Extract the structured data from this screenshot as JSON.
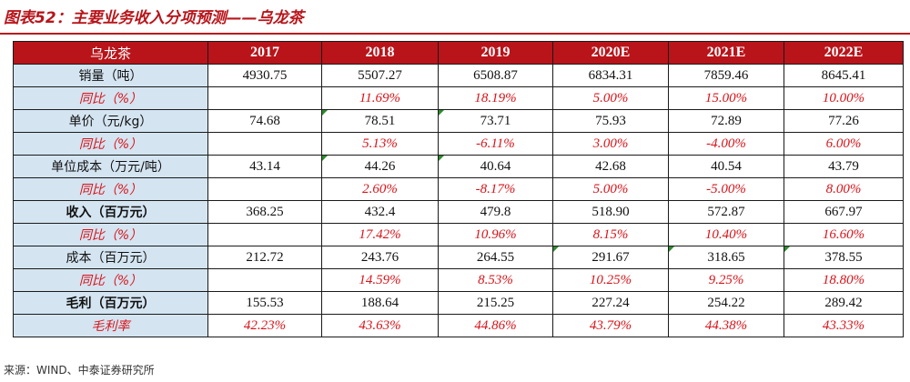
{
  "title": "图表52：主要业务收入分项预测——乌龙茶",
  "table": {
    "header": [
      "乌龙茶",
      "2017",
      "2018",
      "2019",
      "2020E",
      "2021E",
      "2022E"
    ],
    "rows": [
      {
        "label": "销量（吨）",
        "style": "normal",
        "values": [
          "4930.75",
          "5507.27",
          "6508.87",
          "6834.31",
          "7859.46",
          "8645.41"
        ]
      },
      {
        "label": "同比（%）",
        "style": "pct",
        "values": [
          "",
          "11.69%",
          "18.19%",
          "5.00%",
          "15.00%",
          "10.00%"
        ]
      },
      {
        "label": "单价（元/kg）",
        "style": "normal",
        "values": [
          "74.68",
          "78.51",
          "73.71",
          "75.93",
          "72.89",
          "77.26"
        ]
      },
      {
        "label": "同比（%）",
        "style": "pct",
        "values": [
          "",
          "5.13%",
          "-6.11%",
          "3.00%",
          "-4.00%",
          "6.00%"
        ]
      },
      {
        "label": "单位成本（万元/吨）",
        "style": "normal",
        "values": [
          "43.14",
          "44.26",
          "40.64",
          "42.68",
          "40.54",
          "43.79"
        ]
      },
      {
        "label": "同比（%）",
        "style": "pct",
        "values": [
          "",
          "2.60%",
          "-8.17%",
          "5.00%",
          "-5.00%",
          "8.00%"
        ]
      },
      {
        "label": "收入（百万元）",
        "style": "bold",
        "values": [
          "368.25",
          "432.4",
          "479.8",
          "518.90",
          "572.87",
          "667.97"
        ]
      },
      {
        "label": "同比（%）",
        "style": "pct",
        "values": [
          "",
          "17.42%",
          "10.96%",
          "8.15%",
          "10.40%",
          "16.60%"
        ]
      },
      {
        "label": "成本（百万元）",
        "style": "normal",
        "values": [
          "212.72",
          "243.76",
          "264.55",
          "291.67",
          "318.65",
          "378.55"
        ]
      },
      {
        "label": "同比（%）",
        "style": "pct",
        "values": [
          "",
          "14.59%",
          "8.53%",
          "10.25%",
          "9.25%",
          "18.80%"
        ]
      },
      {
        "label": "毛利（百万元）",
        "style": "bold",
        "values": [
          "155.53",
          "188.64",
          "215.25",
          "227.24",
          "254.22",
          "289.42"
        ]
      },
      {
        "label": "毛利率",
        "style": "pct",
        "values": [
          "42.23%",
          "43.63%",
          "44.86%",
          "43.79%",
          "44.38%",
          "43.33%"
        ]
      }
    ]
  },
  "source": "来源：WIND、中泰证券研究所",
  "colors": {
    "accent": "#b8141a",
    "label_bg": "#d4e4f1",
    "pct_text": "#d8141a"
  }
}
